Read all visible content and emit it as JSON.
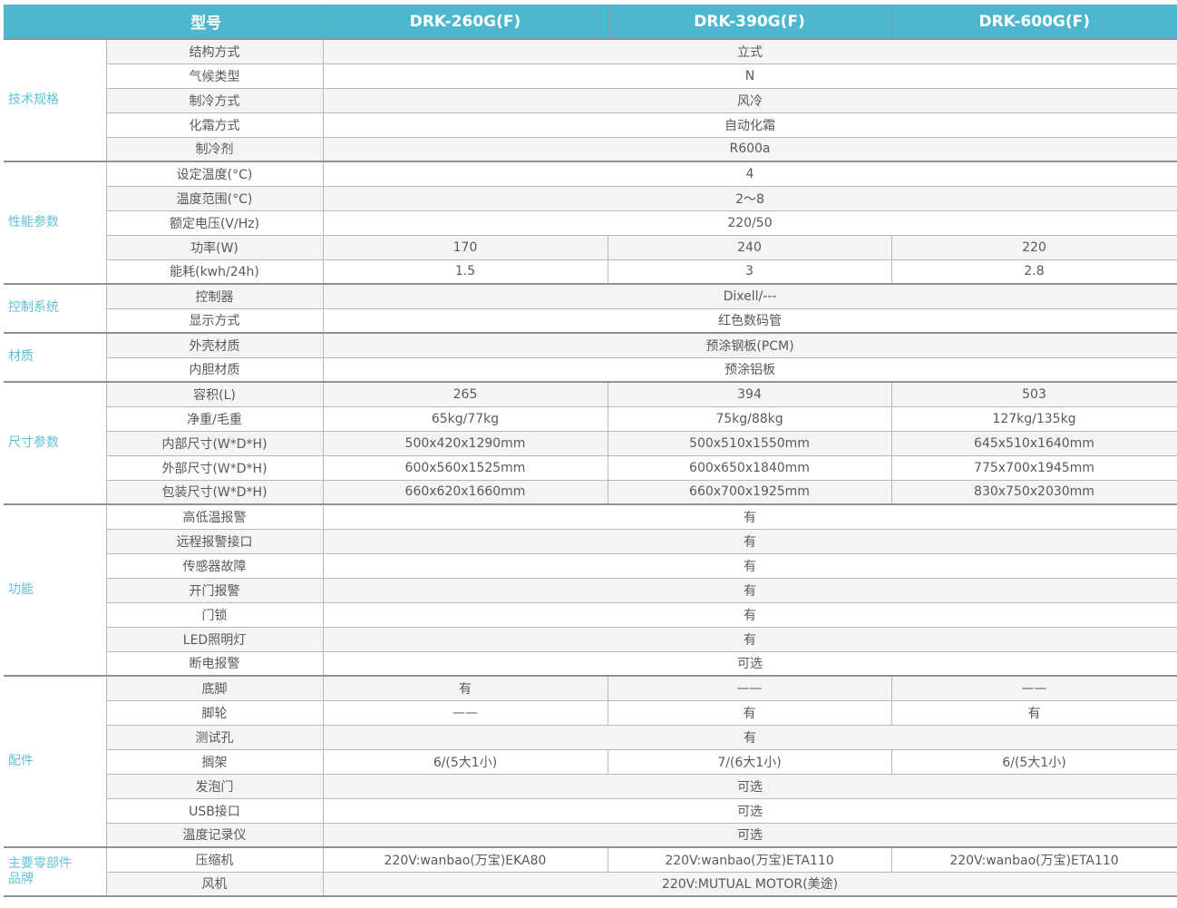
{
  "colors": {
    "header_bg": "#4db8cd",
    "header_text": "#ffffff",
    "category_text": "#5ec4d6",
    "stripe_bg": "#f3f4f5",
    "body_text": "#58595b",
    "grid_line": "#b7b9ba",
    "group_line": "#8f9192"
  },
  "table": {
    "header": {
      "model_label": "型号",
      "models": [
        "DRK-260G(F)",
        "DRK-390G(F)",
        "DRK-600G(F)"
      ]
    },
    "groups": [
      {
        "key": "tech-specs",
        "label": "技术规格",
        "rows": [
          {
            "label": "结构方式",
            "values": [
              "立式"
            ]
          },
          {
            "label": "气候类型",
            "values": [
              "N"
            ]
          },
          {
            "label": "制冷方式",
            "values": [
              "风冷"
            ]
          },
          {
            "label": "化霜方式",
            "values": [
              "自动化霜"
            ]
          },
          {
            "label": "制冷剂",
            "values": [
              "R600a"
            ]
          }
        ]
      },
      {
        "key": "performance",
        "label": "性能参数",
        "rows": [
          {
            "label": "设定温度(°C)",
            "values": [
              "4"
            ]
          },
          {
            "label": "温度范围(°C)",
            "values": [
              "2～8"
            ]
          },
          {
            "label": "额定电压(V/Hz)",
            "values": [
              "220/50"
            ]
          },
          {
            "label": "功率(W)",
            "values": [
              "170",
              "240",
              "220"
            ]
          },
          {
            "label": "能耗(kwh/24h)",
            "values": [
              "1.5",
              "3",
              "2.8"
            ]
          }
        ]
      },
      {
        "key": "control-system",
        "label": "控制系统",
        "rows": [
          {
            "label": "控制器",
            "values": [
              "Dixell/---"
            ]
          },
          {
            "label": "显示方式",
            "values": [
              "红色数码管"
            ]
          }
        ]
      },
      {
        "key": "material",
        "label": "材质",
        "rows": [
          {
            "label": "外壳材质",
            "values": [
              "预涂钢板(PCM)"
            ]
          },
          {
            "label": "内胆材质",
            "values": [
              "预涂铝板"
            ]
          }
        ]
      },
      {
        "key": "dimensions",
        "label": "尺寸参数",
        "rows": [
          {
            "label": "容积(L)",
            "values": [
              "265",
              "394",
              "503"
            ]
          },
          {
            "label": "净重/毛重",
            "values": [
              "65kg/77kg",
              "75kg/88kg",
              "127kg/135kg"
            ]
          },
          {
            "label": "内部尺寸(W*D*H)",
            "values": [
              "500x420x1290mm",
              "500x510x1550mm",
              "645x510x1640mm"
            ]
          },
          {
            "label": "外部尺寸(W*D*H)",
            "values": [
              "600x560x1525mm",
              "600x650x1840mm",
              "775x700x1945mm"
            ]
          },
          {
            "label": "包装尺寸(W*D*H)",
            "values": [
              "660x620x1660mm",
              "660x700x1925mm",
              "830x750x2030mm"
            ]
          }
        ]
      },
      {
        "key": "functions",
        "label": "功能",
        "rows": [
          {
            "label": "高低温报警",
            "values": [
              "有"
            ]
          },
          {
            "label": "远程报警接口",
            "values": [
              "有"
            ]
          },
          {
            "label": "传感器故障",
            "values": [
              "有"
            ]
          },
          {
            "label": "开门报警",
            "values": [
              "有"
            ]
          },
          {
            "label": "门锁",
            "values": [
              "有"
            ]
          },
          {
            "label": "LED照明灯",
            "values": [
              "有"
            ]
          },
          {
            "label": "断电报警",
            "values": [
              "可选"
            ]
          }
        ]
      },
      {
        "key": "accessories",
        "label": "配件",
        "rows": [
          {
            "label": "底脚",
            "values": [
              "有",
              "——",
              "——"
            ]
          },
          {
            "label": "脚轮",
            "values": [
              "——",
              "有",
              "有"
            ]
          },
          {
            "label": "测试孔",
            "values": [
              "有"
            ]
          },
          {
            "label": "搁架",
            "values": [
              "6/(5大1小)",
              "7/(6大1小)",
              "6/(5大1小)"
            ]
          },
          {
            "label": "发泡门",
            "values": [
              "可选"
            ]
          },
          {
            "label": "USB接口",
            "values": [
              "可选"
            ]
          },
          {
            "label": "温度记录仪",
            "values": [
              "可选"
            ]
          }
        ]
      },
      {
        "key": "main-components-brand",
        "label": "主要零部件\n品牌",
        "rows": [
          {
            "label": "压缩机",
            "values": [
              "220V:wanbao(万宝)EKA80",
              "220V:wanbao(万宝)ETA110",
              "220V:wanbao(万宝)ETA110"
            ]
          },
          {
            "label": "风机",
            "values": [
              "220V:MUTUAL MOTOR(美途)"
            ]
          }
        ]
      }
    ]
  }
}
